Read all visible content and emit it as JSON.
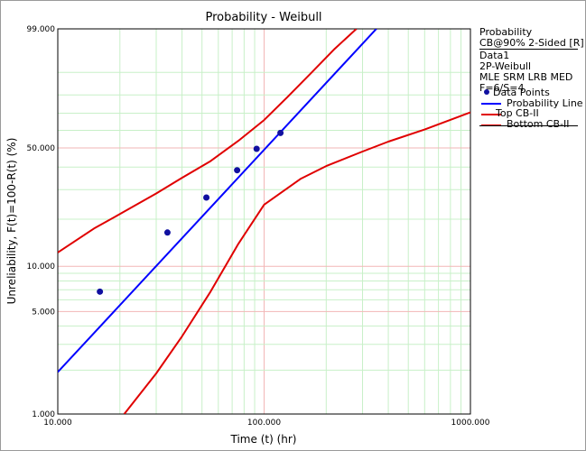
{
  "chart_data": {
    "type": "scatter",
    "title": "Probability - Weibull",
    "xlabel": "Time (t) (hr)",
    "ylabel": "Unreliability, F(t)=100-R(t) (%)",
    "x_scale": "log",
    "y_scale": "weibull",
    "xlim": [
      10,
      1000
    ],
    "ylim": [
      1,
      99
    ],
    "x_ticks": [
      "10.000",
      "100.000",
      "1000.000"
    ],
    "y_ticks": [
      "1.000",
      "5.000",
      "10.000",
      "50.000",
      "99.000"
    ],
    "grid": true,
    "legend_position": "right",
    "colors": {
      "points": "#1010a0",
      "probability_line": "#0000ff",
      "confidence_bounds": "#e00000",
      "grid_minor": "#c8f0c8",
      "grid_major": "#f2b6b6"
    },
    "series": [
      {
        "name": "Data Points",
        "kind": "points",
        "x": [
          16,
          34,
          52.5,
          74,
          92,
          120
        ],
        "y": [
          6.8,
          16.5,
          27.0,
          38.5,
          49.5,
          58.5
        ]
      },
      {
        "name": "Probability Line",
        "kind": "line",
        "x": [
          10,
          350
        ],
        "y": [
          1.94,
          99.0
        ]
      },
      {
        "name": "Top CB-II",
        "kind": "line",
        "x": [
          10,
          15,
          20,
          30,
          40,
          55,
          75,
          100,
          130,
          170,
          220,
          280
        ],
        "y": [
          12.3,
          17.5,
          21.5,
          28.5,
          35.0,
          43.0,
          54.0,
          66.0,
          79.0,
          90.0,
          96.5,
          99.0
        ]
      },
      {
        "name": "Bottom CB-II",
        "kind": "line",
        "x": [
          21,
          30,
          40,
          55,
          75,
          100,
          150,
          200,
          300,
          400,
          600,
          1000
        ],
        "y": [
          1.0,
          1.9,
          3.4,
          6.8,
          14.0,
          24.5,
          34.5,
          40.5,
          48.0,
          53.5,
          60.5,
          70.5
        ]
      }
    ]
  },
  "legend": {
    "heading": "Probability",
    "subheading": "CB@90% 2-Sided [R]",
    "dataset": "Data1",
    "model": "2P-Weibull",
    "method": "MLE SRM LRB MED",
    "counts": "F=6/S=4",
    "entries": [
      "Data Points",
      "Probability Line",
      "Top CB-II",
      "Bottom CB-II"
    ]
  }
}
